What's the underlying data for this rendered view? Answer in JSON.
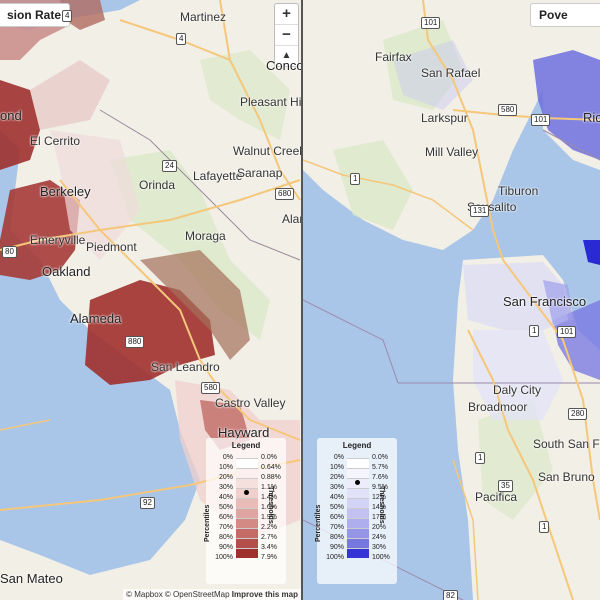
{
  "left_map": {
    "title": "sion Rate",
    "zoom": {
      "in": "+",
      "out": "−",
      "north": "▲"
    },
    "places": [
      "Martinez",
      "Concord",
      "Pleasant Hill",
      "El Cerrito",
      "Walnut Creek",
      "Lafayette",
      "Saranap",
      "Berkeley",
      "Orinda",
      "Piedmont",
      "Emeryville",
      "Moraga",
      "Oakland",
      "Alameda",
      "San Leandro",
      "Castro Valley",
      "Hayward",
      "San Mateo",
      "ond",
      "Alamo"
    ],
    "shields": [
      "4",
      "4",
      "24",
      "680",
      "80",
      "880",
      "580",
      "92"
    ],
    "legend": {
      "title": "Legend",
      "left_axis": "Percentiles",
      "right_axis": "Thresholds",
      "percentiles": [
        "0%",
        "10%",
        "20%",
        "30%",
        "40%",
        "50%",
        "60%",
        "70%",
        "80%",
        "90%",
        "100%"
      ],
      "thresholds": [
        "0.0%",
        "0.64%",
        "0.88%",
        "1.1%",
        "1.4%",
        "1.6%",
        "1.9%",
        "2.2%",
        "2.7%",
        "3.4%",
        "7.9%"
      ],
      "colors": [
        "#ffffff",
        "#fbf0ef",
        "#f6e0de",
        "#f0cfcc",
        "#e9bcb8",
        "#e0a5a0",
        "#d48a84",
        "#c46b66",
        "#b34e4a",
        "#9f302e"
      ],
      "marker_index": 3
    },
    "attribution": {
      "mapbox": "© Mapbox",
      "osm": "© OpenStreetMap",
      "improve": "Improve this map"
    }
  },
  "right_map": {
    "title": "Pove",
    "places": [
      "Fairfax",
      "San Rafael",
      "Larkspur",
      "Mill Valley",
      "Tiburon",
      "Sausalito",
      "San Francisco",
      "Daly City",
      "Broadmoor",
      "South San Francisco",
      "San Bruno",
      "Pacifica",
      "Ric"
    ],
    "shields": [
      "101",
      "580",
      "101",
      "1",
      "131",
      "1",
      "101",
      "280",
      "1",
      "35",
      "1",
      "82"
    ],
    "legend": {
      "title": "Legend",
      "left_axis": "Percentiles",
      "right_axis": "Thresholds",
      "percentiles": [
        "0%",
        "10%",
        "20%",
        "30%",
        "40%",
        "50%",
        "60%",
        "70%",
        "80%",
        "90%",
        "100%"
      ],
      "thresholds": [
        "0.0%",
        "5.7%",
        "7.6%",
        "9.5%",
        "12%",
        "14%",
        "17%",
        "20%",
        "24%",
        "30%",
        "100%"
      ],
      "colors": [
        "#ffffff",
        "#f5f5fd",
        "#ececfb",
        "#e1e1f9",
        "#d3d3f6",
        "#c2c2f2",
        "#aeaeee",
        "#9595e8",
        "#7777e0",
        "#3333d6"
      ],
      "marker_index": 2
    }
  }
}
